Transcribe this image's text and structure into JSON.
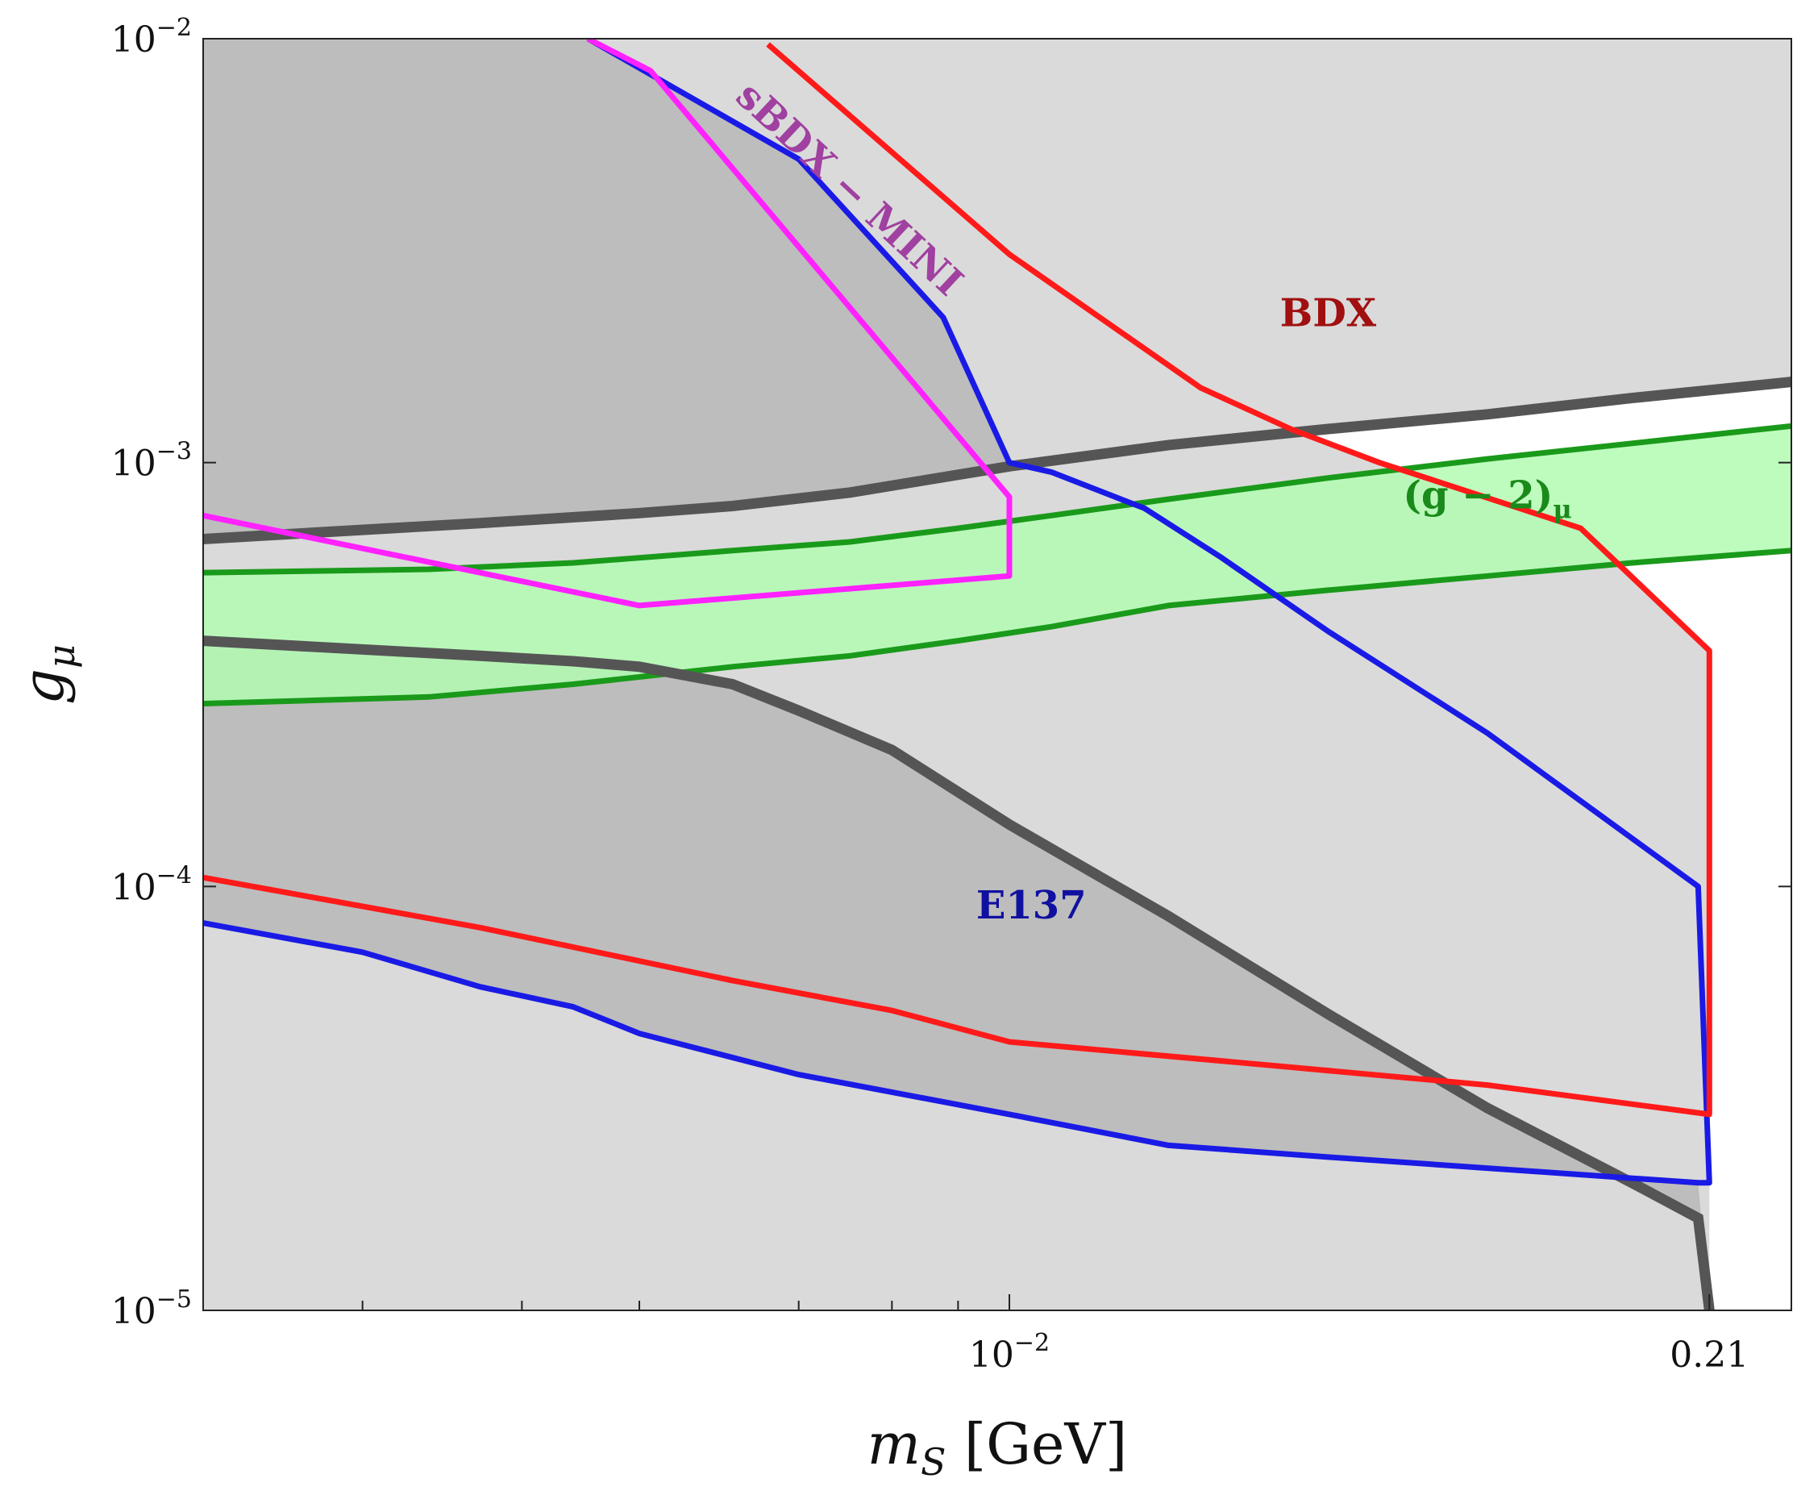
{
  "chart_data": {
    "type": "line",
    "title": "",
    "xscale": "log",
    "yscale": "log",
    "xlim": [
      0.0003,
      0.3
    ],
    "ylim": [
      1e-05,
      0.01
    ],
    "xlabel": {
      "main": "m",
      "sub": "S",
      "unit": " [GeV]"
    },
    "ylabel": {
      "main": "g",
      "sub": "μ"
    },
    "x_ticks": [
      {
        "value": 0.01,
        "label": "10",
        "exp": "−2"
      },
      {
        "value": 0.21,
        "label": "0.21",
        "exp": ""
      }
    ],
    "x_minor_ticks": [
      0.0006,
      0.0012,
      0.002,
      0.004,
      0.006,
      0.008
    ],
    "y_ticks": [
      {
        "value": 0.01,
        "label": "10",
        "exp": "−2"
      },
      {
        "value": 0.001,
        "label": "10",
        "exp": "−3"
      },
      {
        "value": 0.0001,
        "label": "10",
        "exp": "−4"
      },
      {
        "value": 1e-05,
        "label": "10",
        "exp": "−5"
      }
    ],
    "colors": {
      "excluded_fill": "#dadada",
      "dark_fill": "#bdbdbd",
      "g2_fill": "#b3fbb3",
      "g2_line": "#1a9a1a",
      "bdx": "#ff1a1a",
      "e137": "#1a1ae6",
      "sbdx": "#ff22ff",
      "dark_line": "#555555"
    },
    "bands": [
      {
        "name": "(g-2)μ",
        "upper": {
          "x": [
            0.0003,
            0.0008,
            0.0015,
            0.003,
            0.005,
            0.008,
            0.012,
            0.02,
            0.04,
            0.08,
            0.15,
            0.3
          ],
          "y": [
            0.00055,
            0.00056,
            0.00058,
            0.00062,
            0.00065,
            0.0007,
            0.00075,
            0.00082,
            0.00092,
            0.00102,
            0.00111,
            0.00122
          ]
        },
        "lower": {
          "x": [
            0.0003,
            0.0008,
            0.0015,
            0.003,
            0.005,
            0.008,
            0.012,
            0.02,
            0.04,
            0.08,
            0.15,
            0.3
          ],
          "y": [
            0.00027,
            0.00028,
            0.0003,
            0.00033,
            0.00035,
            0.00038,
            0.00041,
            0.00046,
            0.0005,
            0.00054,
            0.00058,
            0.00062
          ]
        }
      }
    ],
    "series": [
      {
        "name": "E137 upper",
        "x": [
          0.0016,
          0.004,
          0.0075,
          0.01,
          0.012,
          0.018,
          0.025,
          0.04,
          0.08,
          0.2
        ],
        "y": [
          0.01,
          0.0052,
          0.0022,
          0.001,
          0.00095,
          0.00078,
          0.0006,
          0.0004,
          0.00023,
          0.0001
        ]
      },
      {
        "name": "E137 lower",
        "x": [
          0.0003,
          0.0006,
          0.001,
          0.0015,
          0.002,
          0.004,
          0.01,
          0.02,
          0.04,
          0.2
        ],
        "y": [
          8.2e-05,
          7e-05,
          5.8e-05,
          5.2e-05,
          4.5e-05,
          3.6e-05,
          2.9e-05,
          2.45e-05,
          2.3e-05,
          2e-05
        ]
      },
      {
        "name": "BDX upper",
        "x": [
          0.0035,
          0.01,
          0.023,
          0.034,
          0.05,
          0.12,
          0.21
        ],
        "y": [
          0.0097,
          0.0031,
          0.0015,
          0.0012,
          0.001,
          0.0007,
          0.00036
        ]
      },
      {
        "name": "BDX lower",
        "x": [
          0.0003,
          0.001,
          0.003,
          0.006,
          0.01,
          0.03,
          0.08,
          0.21
        ],
        "y": [
          0.000105,
          8e-05,
          6e-05,
          5.1e-05,
          4.3e-05,
          3.8e-05,
          3.4e-05,
          2.9e-05
        ]
      },
      {
        "name": "sBDX-MINI",
        "x": [
          0.0003,
          0.002,
          0.01,
          0.01,
          0.0021,
          0.0016
        ],
        "y": [
          0.00075,
          0.00046,
          0.00054,
          0.00083,
          0.0084,
          0.01
        ]
      },
      {
        "name": "Dark curve upper",
        "x": [
          0.0003,
          0.001,
          0.002,
          0.003,
          0.005,
          0.01,
          0.02,
          0.04,
          0.08,
          0.15,
          0.3
        ],
        "y": [
          0.00066,
          0.00072,
          0.00076,
          0.00079,
          0.00085,
          0.00098,
          0.0011,
          0.0012,
          0.0013,
          0.00142,
          0.00155
        ]
      },
      {
        "name": "Dark curve lower",
        "x": [
          0.0003,
          0.001,
          0.0015,
          0.002,
          0.003,
          0.004,
          0.006,
          0.01,
          0.02,
          0.04,
          0.08,
          0.15,
          0.2,
          0.21
        ],
        "y": [
          0.00038,
          0.00035,
          0.00034,
          0.00033,
          0.0003,
          0.00026,
          0.00021,
          0.00014,
          8.5e-05,
          5e-05,
          3e-05,
          2e-05,
          1.65e-05,
          1e-05
        ]
      }
    ],
    "annotations": [
      {
        "name": "BDX",
        "text": "BDX",
        "x": 0.04,
        "y": 0.0021
      },
      {
        "name": "E137",
        "text": "E137",
        "x": 0.011,
        "y": 8.4e-05
      },
      {
        "name": "g-2",
        "text": "(g − 2)",
        "sub": "μ",
        "x": 0.08,
        "y": 0.00078
      },
      {
        "name": "sBDX-MINI",
        "text": "sBDX − MINI",
        "x": 0.0048,
        "y": 0.0042,
        "angle": 43
      }
    ]
  }
}
